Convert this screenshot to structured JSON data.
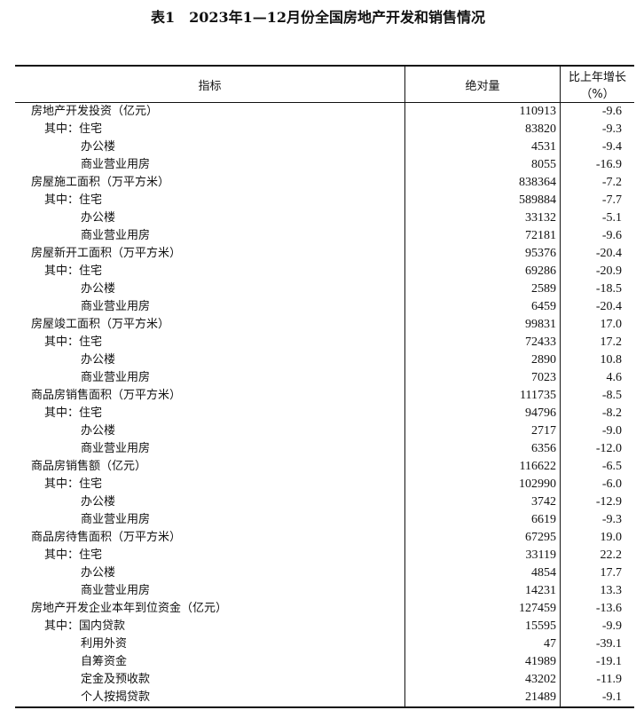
{
  "title": "表1　2023年1—12月份全国房地产开发和销售情况",
  "headers": [
    "指标",
    "绝对量",
    "比上年增长（%）"
  ],
  "rows": [
    {
      "label": "房地产开发投资（亿元）",
      "level": 0,
      "value": "110913",
      "growth": "-9.6"
    },
    {
      "label": "其中：住宅",
      "level": 1,
      "value": "83820",
      "growth": "-9.3"
    },
    {
      "label": "办公楼",
      "level": 2,
      "value": "4531",
      "growth": "-9.4"
    },
    {
      "label": "商业营业用房",
      "level": 2,
      "value": "8055",
      "growth": "-16.9"
    },
    {
      "label": "房屋施工面积（万平方米）",
      "level": 0,
      "value": "838364",
      "growth": "-7.2"
    },
    {
      "label": "其中：住宅",
      "level": 1,
      "value": "589884",
      "growth": "-7.7"
    },
    {
      "label": "办公楼",
      "level": 2,
      "value": "33132",
      "growth": "-5.1"
    },
    {
      "label": "商业营业用房",
      "level": 2,
      "value": "72181",
      "growth": "-9.6"
    },
    {
      "label": "房屋新开工面积（万平方米）",
      "level": 0,
      "value": "95376",
      "growth": "-20.4"
    },
    {
      "label": "其中：住宅",
      "level": 1,
      "value": "69286",
      "growth": "-20.9"
    },
    {
      "label": "办公楼",
      "level": 2,
      "value": "2589",
      "growth": "-18.5"
    },
    {
      "label": "商业营业用房",
      "level": 2,
      "value": "6459",
      "growth": "-20.4"
    },
    {
      "label": "房屋竣工面积（万平方米）",
      "level": 0,
      "value": "99831",
      "growth": "17.0"
    },
    {
      "label": "其中：住宅",
      "level": 1,
      "value": "72433",
      "growth": "17.2"
    },
    {
      "label": "办公楼",
      "level": 2,
      "value": "2890",
      "growth": "10.8"
    },
    {
      "label": "商业营业用房",
      "level": 2,
      "value": "7023",
      "growth": "4.6"
    },
    {
      "label": "商品房销售面积（万平方米）",
      "level": 0,
      "value": "111735",
      "growth": "-8.5"
    },
    {
      "label": "其中：住宅",
      "level": 1,
      "value": "94796",
      "growth": "-8.2"
    },
    {
      "label": "办公楼",
      "level": 2,
      "value": "2717",
      "growth": "-9.0"
    },
    {
      "label": "商业营业用房",
      "level": 2,
      "value": "6356",
      "growth": "-12.0"
    },
    {
      "label": "商品房销售额（亿元）",
      "level": 0,
      "value": "116622",
      "growth": "-6.5"
    },
    {
      "label": "其中：住宅",
      "level": 1,
      "value": "102990",
      "growth": "-6.0"
    },
    {
      "label": "办公楼",
      "level": 2,
      "value": "3742",
      "growth": "-12.9"
    },
    {
      "label": "商业营业用房",
      "level": 2,
      "value": "6619",
      "growth": "-9.3"
    },
    {
      "label": "商品房待售面积（万平方米）",
      "level": 0,
      "value": "67295",
      "growth": "19.0"
    },
    {
      "label": "其中：住宅",
      "level": 1,
      "value": "33119",
      "growth": "22.2"
    },
    {
      "label": "办公楼",
      "level": 2,
      "value": "4854",
      "growth": "17.7"
    },
    {
      "label": "商业营业用房",
      "level": 2,
      "value": "14231",
      "growth": "13.3"
    },
    {
      "label": "房地产开发企业本年到位资金（亿元）",
      "level": 0,
      "value": "127459",
      "growth": "-13.6"
    },
    {
      "label": "其中：国内贷款",
      "level": 1,
      "value": "15595",
      "growth": "-9.9"
    },
    {
      "label": "利用外资",
      "level": 2,
      "value": "47",
      "growth": "-39.1"
    },
    {
      "label": "自筹资金",
      "level": 2,
      "value": "41989",
      "growth": "-19.1"
    },
    {
      "label": "定金及预收款",
      "level": 2,
      "value": "43202",
      "growth": "-11.9"
    },
    {
      "label": "个人按揭贷款",
      "level": 2,
      "value": "21489",
      "growth": "-9.1"
    }
  ]
}
